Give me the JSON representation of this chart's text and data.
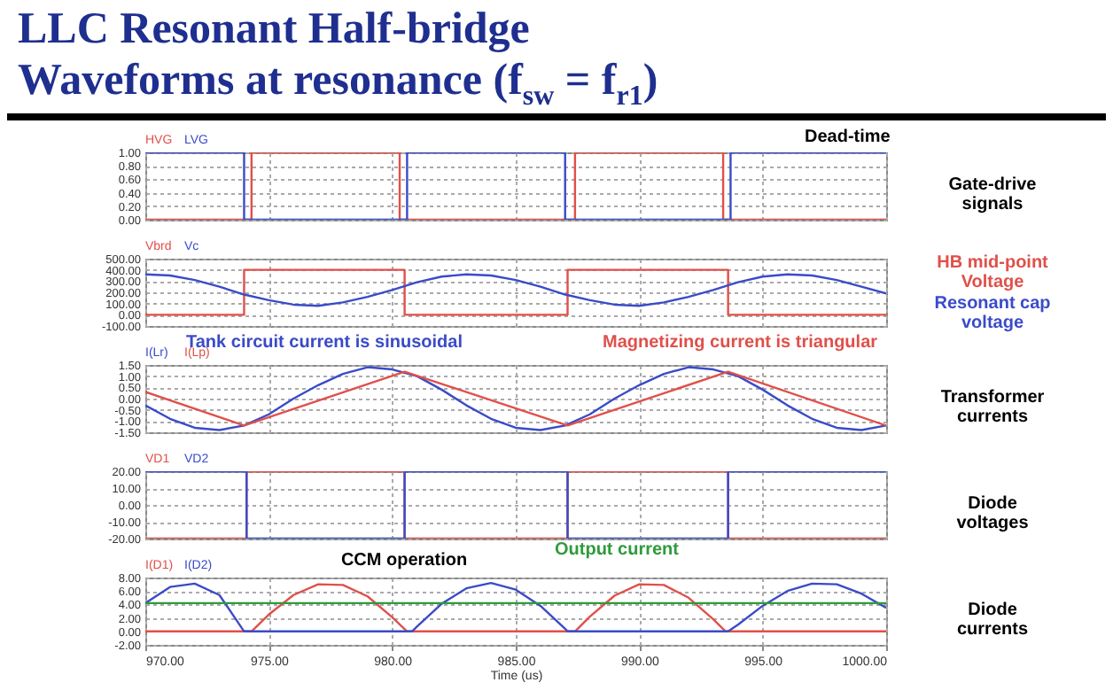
{
  "chart_data": [
    {
      "type": "line",
      "title": "LLC Resonant Half-bridge\nWaveforms at resonance (f$_{sw}$ = f$_{r1}$)",
      "xlim": [
        970,
        1000
      ],
      "xticks": [
        970,
        975,
        980,
        985,
        990,
        995,
        1000
      ],
      "ylim": [
        0,
        1
      ],
      "yticks": [
        {
          "value": 0,
          "label": "0.00"
        },
        {
          "value": 0.2,
          "label": "0.20"
        },
        {
          "value": 0.4,
          "label": "0.40"
        },
        {
          "value": 0.6,
          "label": "0.60"
        },
        {
          "value": 0.8,
          "label": "0.80"
        },
        {
          "value": 1,
          "label": "1.00"
        }
      ],
      "grid": true,
      "tick_labels": "y",
      "annotations": [
        "Gate-drive\nsignals",
        "Dead-time"
      ],
      "series": [
        {
          "name": "HVG",
          "color": "#e0504a",
          "x": [
            970,
            974.3,
            974.3,
            980.3,
            980.3,
            987.4,
            987.4,
            993.4,
            993.4,
            1000
          ],
          "values": [
            0,
            0,
            1,
            1,
            0,
            0,
            1,
            1,
            0,
            0
          ]
        },
        {
          "name": "LVG",
          "color": "#3a4bc8",
          "x": [
            970,
            974.0,
            974.0,
            980.6,
            980.6,
            987.0,
            987.0,
            993.7,
            993.7,
            1000
          ],
          "values": [
            1,
            1,
            0,
            0,
            1,
            1,
            0,
            0,
            1,
            1
          ]
        }
      ]
    },
    {
      "type": "line",
      "xlim": [
        970,
        1000
      ],
      "xticks": [
        970,
        975,
        980,
        985,
        990,
        995,
        1000
      ],
      "ylim": [
        -100,
        500
      ],
      "yticks": [
        {
          "value": -100,
          "label": "-100.00"
        },
        {
          "value": 0,
          "label": "0.00"
        },
        {
          "value": 100,
          "label": "100.00"
        },
        {
          "value": 200,
          "label": "200.00"
        },
        {
          "value": 300,
          "label": "300.00"
        },
        {
          "value": 400,
          "label": "400.00"
        },
        {
          "value": 500,
          "label": "500.00"
        }
      ],
      "grid": true,
      "tick_labels": "y",
      "annotations": [
        "HB mid-point\nVoltage",
        "Resonant cap\nvoltage"
      ],
      "series": [
        {
          "name": "Vbrd",
          "color": "#e0504a",
          "x": [
            970,
            974.0,
            974.0,
            980.5,
            980.5,
            987.1,
            987.1,
            993.6,
            993.6,
            1000
          ],
          "values": [
            0,
            0,
            400,
            400,
            0,
            0,
            400,
            400,
            0,
            0
          ]
        },
        {
          "name": "Vc",
          "color": "#3a4bc8",
          "x": [
            970,
            971,
            972,
            973,
            974,
            975,
            976,
            977,
            978,
            979,
            980,
            981,
            982,
            983,
            984,
            985,
            986,
            987,
            988,
            989,
            990,
            991,
            992,
            993,
            994,
            995,
            996,
            997,
            998,
            999,
            1000
          ],
          "values": [
            360,
            350,
            310,
            250,
            180,
            130,
            90,
            80,
            110,
            160,
            220,
            290,
            340,
            360,
            350,
            310,
            250,
            180,
            130,
            90,
            80,
            110,
            160,
            220,
            290,
            340,
            360,
            350,
            310,
            250,
            190
          ]
        }
      ]
    },
    {
      "type": "line",
      "xlim": [
        970,
        1000
      ],
      "xticks": [
        970,
        975,
        980,
        985,
        990,
        995,
        1000
      ],
      "ylim": [
        -1.5,
        1.5
      ],
      "yticks": [
        {
          "value": -1.5,
          "label": "-1.50"
        },
        {
          "value": -1,
          "label": "-1.00"
        },
        {
          "value": -0.5,
          "label": "-0.50"
        },
        {
          "value": 0,
          "label": "0.00"
        },
        {
          "value": 0.5,
          "label": "0.50"
        },
        {
          "value": 1,
          "label": "1.00"
        },
        {
          "value": 1.5,
          "label": "1.50"
        }
      ],
      "grid": true,
      "tick_labels": "y",
      "annotations": [
        "Transformer\ncurrents",
        "Tank circuit current is sinusoidal",
        "Magnetizing current is triangular"
      ],
      "series": [
        {
          "name": "I(Lr)",
          "color": "#3a4bc8",
          "x": [
            970,
            971,
            972,
            973,
            974,
            975,
            976,
            977,
            978,
            979,
            980,
            981,
            982,
            983,
            984,
            985,
            986,
            987,
            988,
            989,
            990,
            991,
            992,
            993,
            994,
            995,
            996,
            997,
            998,
            999,
            1000
          ],
          "values": [
            -0.3,
            -0.9,
            -1.3,
            -1.4,
            -1.2,
            -0.7,
            0,
            0.6,
            1.1,
            1.4,
            1.3,
            1,
            0.4,
            -0.3,
            -0.9,
            -1.3,
            -1.4,
            -1.2,
            -0.7,
            0,
            0.6,
            1.1,
            1.4,
            1.3,
            1,
            0.4,
            -0.3,
            -0.9,
            -1.3,
            -1.4,
            -1.2
          ]
        },
        {
          "name": "I(Lp)",
          "color": "#e0504a",
          "x": [
            970,
            974.0,
            980.5,
            987.1,
            993.6,
            1000
          ],
          "values": [
            0.3,
            -1.2,
            1.2,
            -1.2,
            1.2,
            -1.2
          ]
        }
      ]
    },
    {
      "type": "line",
      "xlim": [
        970,
        1000
      ],
      "xticks": [
        970,
        975,
        980,
        985,
        990,
        995,
        1000
      ],
      "ylim": [
        -20,
        20
      ],
      "yticks": [
        {
          "value": -20,
          "label": "-20.00"
        },
        {
          "value": -10,
          "label": "-10.00"
        },
        {
          "value": 0,
          "label": "0.00"
        },
        {
          "value": 10,
          "label": "10.00"
        },
        {
          "value": 20,
          "label": "20.00"
        }
      ],
      "grid": true,
      "tick_labels": "y",
      "annotations": [
        "Diode\nvoltages"
      ],
      "series": [
        {
          "name": "VD1",
          "color": "#e0504a",
          "x": [
            970,
            974.1,
            974.1,
            980.5,
            980.5,
            987.1,
            987.1,
            993.6,
            993.6,
            1000
          ],
          "values": [
            -20,
            -20,
            20,
            20,
            -20,
            -20,
            20,
            20,
            -20,
            -20
          ]
        },
        {
          "name": "VD2",
          "color": "#3a4bc8",
          "x": [
            970,
            974.1,
            974.1,
            980.5,
            980.5,
            987.1,
            987.1,
            993.6,
            993.6,
            1000
          ],
          "values": [
            20,
            20,
            -20,
            -20,
            20,
            20,
            -20,
            -20,
            20,
            20
          ]
        }
      ]
    },
    {
      "type": "line",
      "xlim": [
        970,
        1000
      ],
      "xticks": [
        {
          "value": 970,
          "label": "970.00"
        },
        {
          "value": 975,
          "label": "975.00"
        },
        {
          "value": 980,
          "label": "980.00"
        },
        {
          "value": 985,
          "label": "985.00"
        },
        {
          "value": 990,
          "label": "990.00"
        },
        {
          "value": 995,
          "label": "995.00"
        },
        {
          "value": 1000,
          "label": "1000.00"
        }
      ],
      "xlabel": "Time (us)",
      "ylim": [
        -2,
        8
      ],
      "yticks": [
        {
          "value": -2,
          "label": "-2.00"
        },
        {
          "value": 0,
          "label": "0.00"
        },
        {
          "value": 2,
          "label": "2.00"
        },
        {
          "value": 4,
          "label": "4.00"
        },
        {
          "value": 6,
          "label": "6.00"
        },
        {
          "value": 8,
          "label": "8.00"
        }
      ],
      "grid": true,
      "annotations": [
        "Diode\ncurrents",
        "CCM operation",
        "Output current"
      ],
      "series": [
        {
          "name": "I(D1)",
          "color": "#e0504a",
          "x": [
            970,
            974.3,
            975,
            976,
            977,
            978,
            979,
            980,
            980.6,
            987.4,
            988,
            989,
            990,
            991,
            992,
            993,
            993.5,
            1000
          ],
          "values": [
            0,
            0,
            2.5,
            5.4,
            7.0,
            6.9,
            5.2,
            2.1,
            0,
            0,
            2.2,
            5.3,
            7.0,
            6.9,
            5.0,
            1.8,
            0,
            0
          ]
        },
        {
          "name": "I(D2)",
          "color": "#3a4bc8",
          "x": [
            970,
            971,
            972,
            973,
            974,
            980.8,
            981,
            982,
            983,
            984,
            985,
            986,
            987,
            987.1,
            993.6,
            994,
            995,
            996,
            997,
            998,
            999,
            1000
          ],
          "values": [
            4.2,
            6.6,
            7.1,
            5.4,
            0,
            0,
            0.7,
            4.1,
            6.4,
            7.2,
            6.2,
            3.8,
            0.4,
            0,
            0,
            1.0,
            3.8,
            6.0,
            7.1,
            7.0,
            5.6,
            3.5
          ]
        },
        {
          "color": "#2e9b3a",
          "x": [
            970,
            1000
          ],
          "values": [
            4.2,
            4.2
          ]
        }
      ]
    }
  ]
}
